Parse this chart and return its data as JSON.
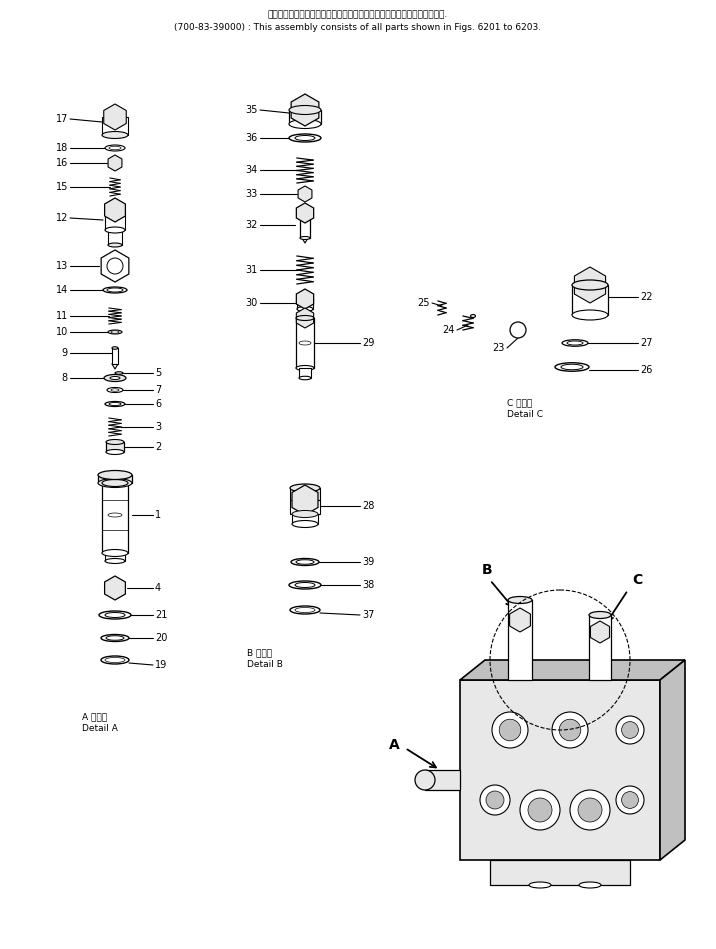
{
  "header_line1": "このアセンブリの構成部品は第６２０１図から第６２０３図まで含みます.",
  "header_line2": "(700-83-39000) : This assembly consists of all parts shown in Figs. 6201 to 6203.",
  "detail_a_label1": "A 詳細図",
  "detail_a_label2": "Detail A",
  "detail_b_label1": "B 詳細図",
  "detail_b_label2": "Detail B",
  "detail_c_label1": "C 詳細図",
  "detail_c_label2": "Detail C",
  "bg_color": "#ffffff",
  "line_color": "#000000",
  "fill_light": "#e8e8e8",
  "fill_mid": "#c0c0c0",
  "fill_dark": "#888888"
}
